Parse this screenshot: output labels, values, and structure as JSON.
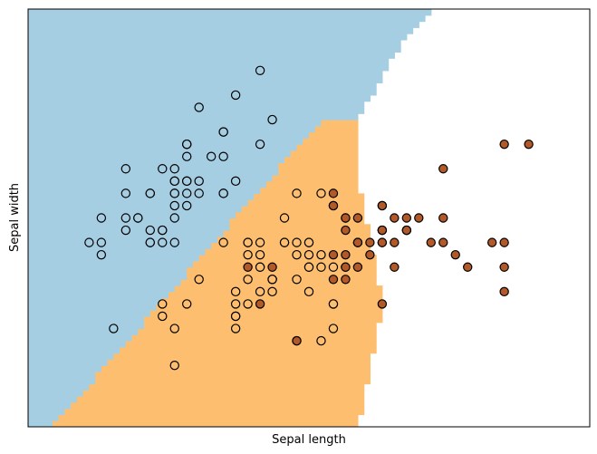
{
  "chart_data": {
    "type": "scatter",
    "title": "",
    "xlabel": "Sepal length",
    "ylabel": "Sepal width",
    "xlim": [
      3.8,
      8.4
    ],
    "ylim": [
      1.5,
      4.9
    ],
    "show_ticks": false,
    "grid": false,
    "classes": [
      {
        "name": "",
        "region_color": "#a6cee3",
        "point_color": "#a6cee3"
      },
      {
        "name": "",
        "region_color": "#fdbf6f",
        "point_color": "#fdbf6f"
      },
      {
        "name": "",
        "region_color": "#b15928",
        "point_color": "#b15928"
      }
    ],
    "decision_regions": {
      "boundary_0_1": [
        [
          4.0,
          1.5
        ],
        [
          6.2,
          4.0
        ],
        [
          7.1,
          4.9
        ]
      ],
      "boundary_1_2": [
        [
          6.5,
          4.0
        ],
        [
          6.5,
          3.5
        ],
        [
          6.7,
          2.5
        ],
        [
          6.5,
          1.5
        ]
      ],
      "boundary_0_2": [
        [
          6.5,
          4.0
        ],
        [
          6.9,
          4.7
        ],
        [
          7.1,
          4.9
        ]
      ]
    },
    "points": [
      [
        5.1,
        3.5,
        0
      ],
      [
        4.9,
        3.0,
        0
      ],
      [
        4.7,
        3.2,
        0
      ],
      [
        4.6,
        3.1,
        0
      ],
      [
        5.0,
        3.6,
        0
      ],
      [
        5.4,
        3.9,
        0
      ],
      [
        4.6,
        3.4,
        0
      ],
      [
        5.0,
        3.4,
        0
      ],
      [
        4.4,
        2.9,
        0
      ],
      [
        4.9,
        3.1,
        0
      ],
      [
        5.4,
        3.7,
        0
      ],
      [
        4.8,
        3.4,
        0
      ],
      [
        4.8,
        3.0,
        0
      ],
      [
        4.3,
        3.0,
        0
      ],
      [
        5.8,
        4.0,
        0
      ],
      [
        5.7,
        4.4,
        0
      ],
      [
        5.4,
        3.9,
        0
      ],
      [
        5.1,
        3.5,
        0
      ],
      [
        5.7,
        3.8,
        0
      ],
      [
        5.1,
        3.8,
        0
      ],
      [
        5.4,
        3.4,
        0
      ],
      [
        5.1,
        3.7,
        0
      ],
      [
        4.6,
        3.6,
        0
      ],
      [
        5.1,
        3.3,
        0
      ],
      [
        4.8,
        3.4,
        0
      ],
      [
        5.0,
        3.0,
        0
      ],
      [
        5.0,
        3.4,
        0
      ],
      [
        5.2,
        3.5,
        0
      ],
      [
        5.2,
        3.4,
        0
      ],
      [
        4.7,
        3.2,
        0
      ],
      [
        4.8,
        3.1,
        0
      ],
      [
        5.4,
        3.4,
        0
      ],
      [
        5.2,
        4.1,
        0
      ],
      [
        5.5,
        4.2,
        0
      ],
      [
        4.9,
        3.1,
        0
      ],
      [
        5.0,
        3.2,
        0
      ],
      [
        5.5,
        3.5,
        0
      ],
      [
        4.9,
        3.6,
        0
      ],
      [
        4.4,
        3.0,
        0
      ],
      [
        5.1,
        3.4,
        0
      ],
      [
        5.0,
        3.5,
        0
      ],
      [
        4.5,
        2.3,
        0
      ],
      [
        4.4,
        3.2,
        0
      ],
      [
        5.0,
        3.5,
        0
      ],
      [
        5.1,
        3.8,
        0
      ],
      [
        4.8,
        3.0,
        0
      ],
      [
        5.1,
        3.8,
        0
      ],
      [
        4.6,
        3.2,
        0
      ],
      [
        5.3,
        3.7,
        0
      ],
      [
        5.0,
        3.3,
        0
      ],
      [
        7.0,
        3.2,
        2
      ],
      [
        6.4,
        3.2,
        2
      ],
      [
        6.9,
        3.1,
        2
      ],
      [
        5.5,
        2.3,
        1
      ],
      [
        6.5,
        2.8,
        2
      ],
      [
        5.7,
        2.8,
        1
      ],
      [
        6.3,
        3.3,
        2
      ],
      [
        4.9,
        2.4,
        1
      ],
      [
        6.6,
        2.9,
        2
      ],
      [
        5.2,
        2.7,
        1
      ],
      [
        5.0,
        2.0,
        1
      ],
      [
        5.9,
        3.0,
        1
      ],
      [
        6.0,
        2.2,
        1
      ],
      [
        6.1,
        2.9,
        1
      ],
      [
        5.6,
        2.9,
        1
      ],
      [
        6.7,
        3.1,
        2
      ],
      [
        5.6,
        3.0,
        1
      ],
      [
        5.8,
        2.7,
        1
      ],
      [
        6.2,
        2.2,
        1
      ],
      [
        5.6,
        2.5,
        1
      ],
      [
        5.9,
        3.2,
        1
      ],
      [
        6.1,
        2.8,
        1
      ],
      [
        6.3,
        2.5,
        1
      ],
      [
        6.1,
        2.8,
        1
      ],
      [
        6.4,
        2.9,
        2
      ],
      [
        6.6,
        3.0,
        2
      ],
      [
        6.8,
        2.8,
        2
      ],
      [
        6.7,
        3.0,
        2
      ],
      [
        6.0,
        2.9,
        1
      ],
      [
        5.7,
        2.6,
        1
      ],
      [
        5.5,
        2.4,
        1
      ],
      [
        5.5,
        2.4,
        1
      ],
      [
        5.8,
        2.7,
        1
      ],
      [
        6.0,
        2.7,
        1
      ],
      [
        5.4,
        3.0,
        1
      ],
      [
        6.0,
        3.4,
        1
      ],
      [
        6.7,
        3.1,
        2
      ],
      [
        6.3,
        2.3,
        1
      ],
      [
        5.6,
        3.0,
        1
      ],
      [
        5.5,
        2.5,
        1
      ],
      [
        5.5,
        2.6,
        1
      ],
      [
        6.1,
        3.0,
        1
      ],
      [
        5.8,
        2.6,
        1
      ],
      [
        5.0,
        2.3,
        1
      ],
      [
        5.6,
        2.7,
        1
      ],
      [
        5.7,
        3.0,
        1
      ],
      [
        5.7,
        2.9,
        1
      ],
      [
        6.2,
        2.9,
        1
      ],
      [
        5.1,
        2.5,
        1
      ],
      [
        5.7,
        2.8,
        1
      ],
      [
        6.3,
        3.3,
        2
      ],
      [
        5.8,
        2.7,
        1
      ],
      [
        7.1,
        3.0,
        2
      ],
      [
        6.3,
        2.9,
        2
      ],
      [
        6.5,
        3.0,
        2
      ],
      [
        7.6,
        3.0,
        2
      ],
      [
        4.9,
        2.5,
        1
      ],
      [
        7.3,
        2.9,
        2
      ],
      [
        6.7,
        2.5,
        2
      ],
      [
        7.2,
        3.6,
        2
      ],
      [
        6.5,
        3.2,
        2
      ],
      [
        6.4,
        2.7,
        2
      ],
      [
        6.8,
        3.0,
        2
      ],
      [
        5.7,
        2.5,
        2
      ],
      [
        5.8,
        2.8,
        2
      ],
      [
        6.4,
        3.2,
        2
      ],
      [
        6.5,
        3.0,
        2
      ],
      [
        7.7,
        3.8,
        2
      ],
      [
        7.7,
        2.6,
        2
      ],
      [
        6.0,
        2.2,
        2
      ],
      [
        6.9,
        3.2,
        2
      ],
      [
        5.6,
        2.8,
        2
      ],
      [
        7.7,
        2.8,
        2
      ],
      [
        6.3,
        2.7,
        2
      ],
      [
        6.7,
        3.3,
        2
      ],
      [
        7.2,
        3.2,
        2
      ],
      [
        6.2,
        2.8,
        1
      ],
      [
        6.1,
        3.0,
        1
      ],
      [
        6.4,
        2.8,
        2
      ],
      [
        7.2,
        3.0,
        2
      ],
      [
        7.4,
        2.8,
        2
      ],
      [
        7.9,
        3.8,
        2
      ],
      [
        6.4,
        2.8,
        2
      ],
      [
        6.3,
        2.8,
        1
      ],
      [
        6.1,
        2.6,
        1
      ],
      [
        7.7,
        3.0,
        2
      ],
      [
        6.3,
        3.4,
        2
      ],
      [
        6.4,
        3.1,
        2
      ],
      [
        6.0,
        3.0,
        1
      ],
      [
        6.9,
        3.1,
        2
      ],
      [
        6.7,
        3.1,
        2
      ],
      [
        6.9,
        3.1,
        2
      ],
      [
        5.8,
        2.7,
        1
      ],
      [
        6.8,
        3.2,
        2
      ],
      [
        6.7,
        3.3,
        2
      ],
      [
        6.7,
        3.0,
        2
      ],
      [
        6.3,
        2.5,
        1
      ],
      [
        6.5,
        3.0,
        2
      ],
      [
        6.2,
        3.4,
        1
      ],
      [
        5.9,
        3.0,
        1
      ]
    ]
  }
}
